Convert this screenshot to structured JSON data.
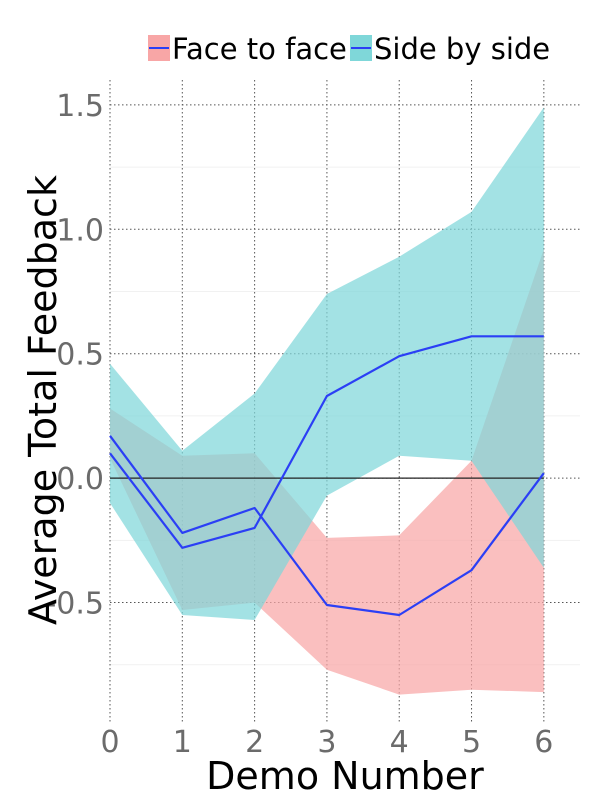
{
  "chart_data": {
    "type": "line",
    "xlabel": "Demo Number",
    "ylabel": "Average Total Feedback",
    "x": [
      0,
      1,
      2,
      3,
      4,
      5,
      6
    ],
    "x_ticks": [
      "0",
      "1",
      "2",
      "3",
      "4",
      "5",
      "6"
    ],
    "y_ticks": [
      "-0.5",
      "0.0",
      "0.5",
      "1.0",
      "1.5"
    ],
    "xlim": [
      0,
      6.5
    ],
    "ylim": [
      -0.98,
      1.6
    ],
    "grid": true,
    "legend_position": "top",
    "series": [
      {
        "name": "Face to face",
        "band_color": "#f8a6a6",
        "line_color": "#2b3ff5",
        "values": [
          0.17,
          -0.22,
          -0.12,
          -0.51,
          -0.55,
          -0.37,
          0.02
        ],
        "lower": [
          0.08,
          -0.53,
          -0.5,
          -0.77,
          -0.87,
          -0.85,
          -0.86
        ],
        "upper": [
          0.28,
          0.09,
          0.1,
          -0.24,
          -0.23,
          0.07,
          0.92
        ]
      },
      {
        "name": "Side by side",
        "band_color": "#7fd7d9",
        "line_color": "#2b3ff5",
        "values": [
          0.1,
          -0.28,
          -0.2,
          0.33,
          0.49,
          0.57,
          0.57
        ],
        "lower": [
          -0.1,
          -0.55,
          -0.57,
          -0.07,
          0.09,
          0.07,
          -0.36
        ],
        "upper": [
          0.46,
          0.11,
          0.34,
          0.74,
          0.89,
          1.07,
          1.49
        ]
      }
    ]
  }
}
